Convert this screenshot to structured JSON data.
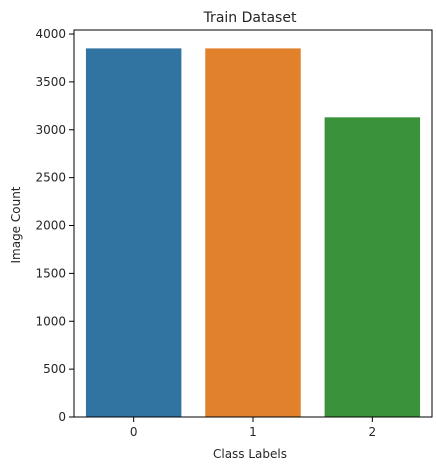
{
  "chart_data": {
    "type": "bar",
    "title": "Train Dataset",
    "xlabel": "Class Labels",
    "ylabel": "Image Count",
    "categories": [
      "0",
      "1",
      "2"
    ],
    "values": [
      3850,
      3850,
      3130
    ],
    "ylim": [
      0,
      4042
    ],
    "yticks": [
      0,
      500,
      1000,
      1500,
      2000,
      2500,
      3000,
      3500,
      4000
    ],
    "colors": [
      "#3274a1",
      "#e1812c",
      "#3a923a"
    ],
    "grid": false,
    "legend": "none"
  }
}
